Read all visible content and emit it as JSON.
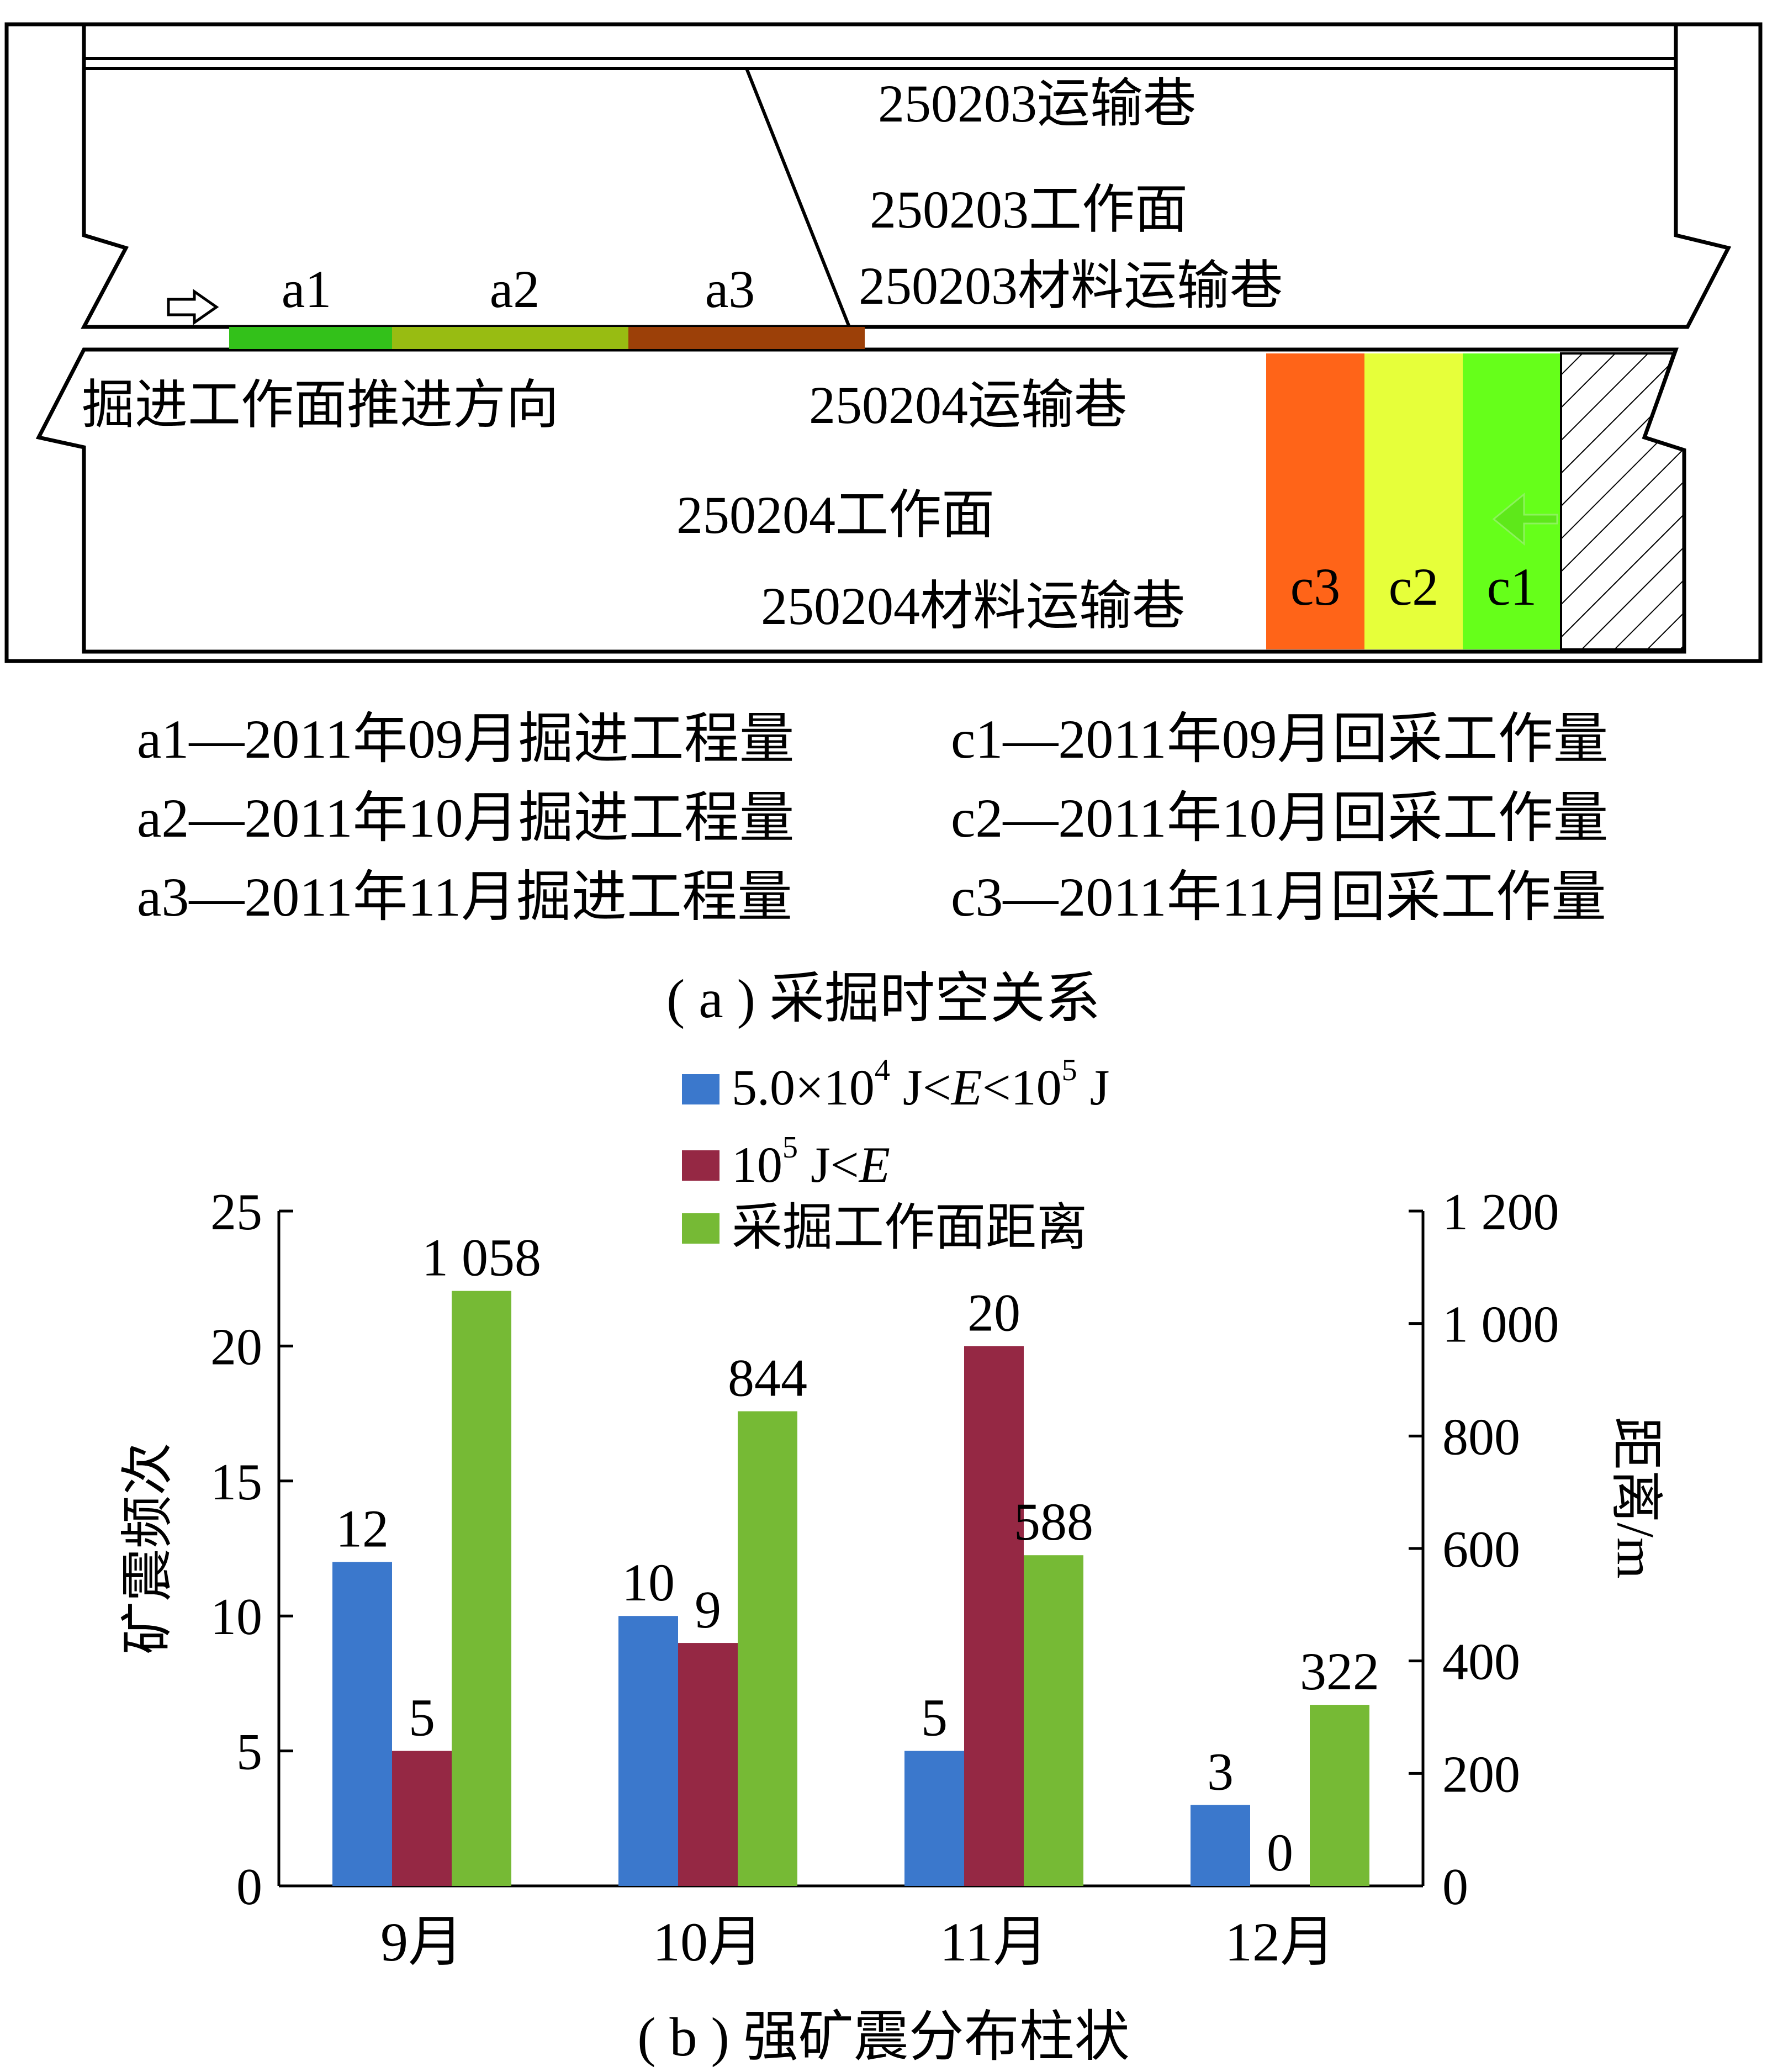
{
  "diagram": {
    "labels": {
      "road_250203_haul": "250203运输巷",
      "face_250203": "250203工作面",
      "road_250203_material": "250203材料运输巷",
      "road_250204_haul": "250204运输巷",
      "face_250204": "250204工作面",
      "road_250204_material": "250204材料运输巷",
      "advance_direction": "掘进工作面推进方向"
    },
    "segments_a": [
      {
        "label": "a1",
        "color": "#33c11a"
      },
      {
        "label": "a2",
        "color": "#98bc12"
      },
      {
        "label": "a3",
        "color": "#9c4008"
      }
    ],
    "segments_c": [
      {
        "label": "c3",
        "color": "#ff6418"
      },
      {
        "label": "c2",
        "color": "#e6ff3a"
      },
      {
        "label": "c1",
        "color": "#66ff1a"
      }
    ],
    "legend_a": [
      "a1—2011年09月掘进工程量",
      "a2—2011年10月掘进工程量",
      "a3—2011年11月掘进工程量"
    ],
    "legend_c": [
      "c1—2011年09月回采工作量",
      "c2—2011年10月回采工作量",
      "c3—2011年11月回采工作量"
    ],
    "caption": "( a ) 采掘时空关系"
  },
  "chart_data": {
    "type": "bar",
    "categories": [
      "9月",
      "10月",
      "11月",
      "12月"
    ],
    "series": [
      {
        "name": "5.0×10⁴ J<E<10⁵ J",
        "axis": "left",
        "color": "#3b78cc",
        "values": [
          12,
          10,
          5,
          3
        ],
        "labels": [
          "12",
          "10",
          "5",
          "3"
        ]
      },
      {
        "name": "10⁵ J<E",
        "axis": "left",
        "color": "#952844",
        "values": [
          5,
          9,
          20,
          0
        ],
        "labels": [
          "5",
          "9",
          "20",
          "0"
        ]
      },
      {
        "name": "采掘工作面距离",
        "axis": "right",
        "color": "#76ba35",
        "values": [
          1058,
          844,
          588,
          322
        ],
        "labels": [
          "1 058",
          "844",
          "588",
          "322"
        ]
      }
    ],
    "ylabel": "矿震频次",
    "ylabel_right": "距离/m",
    "ylim": [
      0,
      25
    ],
    "ylim_right": [
      0,
      1200
    ],
    "yticks": [
      "0",
      "5",
      "10",
      "15",
      "20",
      "25"
    ],
    "yticks_right": [
      "0",
      "200",
      "400",
      "600",
      "800",
      "1 000",
      "1 200"
    ],
    "grid": false,
    "legend_position": "top"
  },
  "chart_caption": "( b ) 强矿震分布柱状"
}
